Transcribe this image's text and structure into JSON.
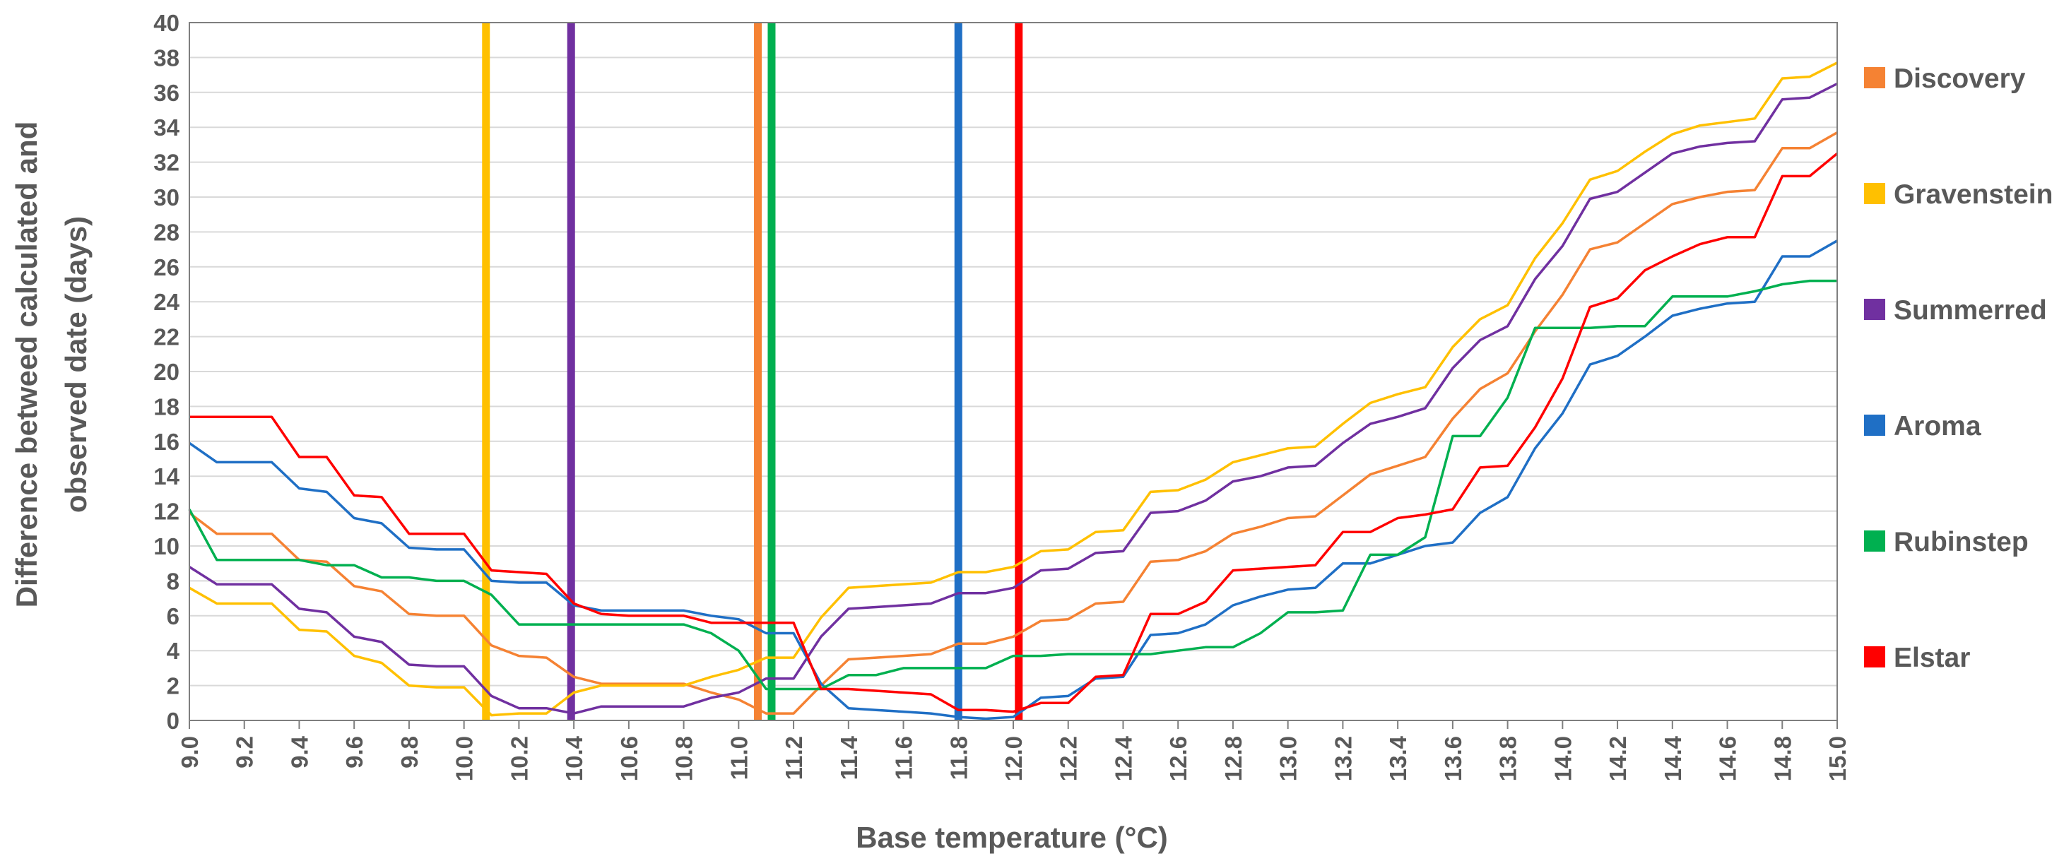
{
  "chart_data": {
    "type": "line",
    "title": "",
    "xlabel": "Base temperature (°C)",
    "ylabel_lines": [
      "Difference betweed calculated and",
      "observed date (days)"
    ],
    "xlim": [
      9.0,
      15.0
    ],
    "ylim": [
      0,
      40
    ],
    "x_ticks": [
      "9.0",
      "9.2",
      "9.4",
      "9.6",
      "9.8",
      "10.0",
      "10.2",
      "10.4",
      "10.6",
      "10.8",
      "11.0",
      "11.2",
      "11.4",
      "11.6",
      "11.8",
      "12.0",
      "12.2",
      "12.4",
      "12.6",
      "12.8",
      "13.0",
      "13.2",
      "13.4",
      "13.6",
      "13.8",
      "14.0",
      "14.2",
      "14.4",
      "14.6",
      "14.8",
      "15.0"
    ],
    "y_ticks": [
      "0",
      "2",
      "4",
      "6",
      "8",
      "10",
      "12",
      "14",
      "16",
      "18",
      "20",
      "22",
      "24",
      "26",
      "28",
      "30",
      "32",
      "34",
      "36",
      "38",
      "40"
    ],
    "grid": "horizontal",
    "legend_position": "right",
    "x": [
      9.0,
      9.1,
      9.2,
      9.3,
      9.4,
      9.5,
      9.6,
      9.7,
      9.8,
      9.9,
      10.0,
      10.1,
      10.2,
      10.3,
      10.4,
      10.5,
      10.6,
      10.7,
      10.8,
      10.9,
      11.0,
      11.1,
      11.2,
      11.3,
      11.4,
      11.5,
      11.6,
      11.7,
      11.8,
      11.9,
      12.0,
      12.1,
      12.2,
      12.3,
      12.4,
      12.5,
      12.6,
      12.7,
      12.8,
      12.9,
      13.0,
      13.1,
      13.2,
      13.3,
      13.4,
      13.5,
      13.6,
      13.7,
      13.8,
      13.9,
      14.0,
      14.1,
      14.2,
      14.3,
      14.4,
      14.5,
      14.6,
      14.7,
      14.8,
      14.9,
      15.0
    ],
    "series": [
      {
        "name": "Discovery",
        "color": "#F58233",
        "optimum": 11.07,
        "values": [
          11.9,
          10.7,
          10.7,
          10.7,
          9.2,
          9.1,
          7.7,
          7.4,
          6.1,
          6.0,
          6.0,
          4.3,
          3.7,
          3.6,
          2.5,
          2.1,
          2.1,
          2.1,
          2.1,
          1.6,
          1.2,
          0.4,
          0.4,
          2.0,
          3.5,
          3.6,
          3.7,
          3.8,
          4.4,
          4.4,
          4.8,
          5.7,
          5.8,
          6.7,
          6.8,
          9.1,
          9.2,
          9.7,
          10.7,
          11.1,
          11.6,
          11.7,
          12.9,
          14.1,
          14.6,
          15.1,
          17.3,
          19.0,
          19.9,
          22.3,
          24.4,
          27.0,
          27.4,
          28.5,
          29.6,
          30.0,
          30.3,
          30.4,
          32.8,
          32.8,
          33.7
        ]
      },
      {
        "name": "Gravenstein",
        "color": "#FFC000",
        "optimum": 10.08,
        "values": [
          7.6,
          6.7,
          6.7,
          6.7,
          5.2,
          5.1,
          3.7,
          3.3,
          2.0,
          1.9,
          1.9,
          0.3,
          0.4,
          0.4,
          1.6,
          2.0,
          2.0,
          2.0,
          2.0,
          2.5,
          2.9,
          3.6,
          3.6,
          5.9,
          7.6,
          7.7,
          7.8,
          7.9,
          8.5,
          8.5,
          8.8,
          9.7,
          9.8,
          10.8,
          10.9,
          13.1,
          13.2,
          13.8,
          14.8,
          15.2,
          15.6,
          15.7,
          17.0,
          18.2,
          18.7,
          19.1,
          21.4,
          23.0,
          23.8,
          26.5,
          28.5,
          31.0,
          31.5,
          32.6,
          33.6,
          34.1,
          34.3,
          34.5,
          36.8,
          36.9,
          37.7
        ]
      },
      {
        "name": "Summerred",
        "color": "#7030A0",
        "optimum": 10.39,
        "values": [
          8.8,
          7.8,
          7.8,
          7.8,
          6.4,
          6.2,
          4.8,
          4.5,
          3.2,
          3.1,
          3.1,
          1.4,
          0.7,
          0.7,
          0.4,
          0.8,
          0.8,
          0.8,
          0.8,
          1.3,
          1.6,
          2.4,
          2.4,
          4.8,
          6.4,
          6.5,
          6.6,
          6.7,
          7.3,
          7.3,
          7.6,
          8.6,
          8.7,
          9.6,
          9.7,
          11.9,
          12.0,
          12.6,
          13.7,
          14.0,
          14.5,
          14.6,
          15.9,
          17.0,
          17.4,
          17.9,
          20.2,
          21.8,
          22.6,
          25.3,
          27.2,
          29.9,
          30.3,
          31.4,
          32.5,
          32.9,
          33.1,
          33.2,
          35.6,
          35.7,
          36.5
        ]
      },
      {
        "name": "Aroma",
        "color": "#1F6FC5",
        "optimum": 11.8,
        "values": [
          15.9,
          14.8,
          14.8,
          14.8,
          13.3,
          13.1,
          11.6,
          11.3,
          9.9,
          9.8,
          9.8,
          8.0,
          7.9,
          7.9,
          6.6,
          6.3,
          6.3,
          6.3,
          6.3,
          6.0,
          5.8,
          5.0,
          5.0,
          2.1,
          0.7,
          0.6,
          0.5,
          0.4,
          0.2,
          0.1,
          0.2,
          1.3,
          1.4,
          2.4,
          2.5,
          4.9,
          5.0,
          5.5,
          6.6,
          7.1,
          7.5,
          7.6,
          9.0,
          9.0,
          9.5,
          10.0,
          10.2,
          11.9,
          12.8,
          15.6,
          17.6,
          20.4,
          20.9,
          22.0,
          23.2,
          23.6,
          23.9,
          24.0,
          26.6,
          26.6,
          27.5
        ]
      },
      {
        "name": "Rubinstep",
        "color": "#00B050",
        "optimum": 11.12,
        "values": [
          12.1,
          9.2,
          9.2,
          9.2,
          9.2,
          8.9,
          8.9,
          8.2,
          8.2,
          8.0,
          8.0,
          7.2,
          5.5,
          5.5,
          5.5,
          5.5,
          5.5,
          5.5,
          5.5,
          5.0,
          4.0,
          1.8,
          1.8,
          1.8,
          2.6,
          2.6,
          3.0,
          3.0,
          3.0,
          3.0,
          3.7,
          3.7,
          3.8,
          3.8,
          3.8,
          3.8,
          4.0,
          4.2,
          4.2,
          5.0,
          6.2,
          6.2,
          6.3,
          9.5,
          9.5,
          10.5,
          16.3,
          16.3,
          18.5,
          22.5,
          22.5,
          22.5,
          22.6,
          22.6,
          24.3,
          24.3,
          24.3,
          24.6,
          25.0,
          25.2,
          25.2
        ]
      },
      {
        "name": "Elstar",
        "color": "#FF0000",
        "optimum": 12.02,
        "values": [
          17.4,
          17.4,
          17.4,
          17.4,
          15.1,
          15.1,
          12.9,
          12.8,
          10.7,
          10.7,
          10.7,
          8.6,
          8.5,
          8.4,
          6.7,
          6.1,
          6.0,
          6.0,
          6.0,
          5.6,
          5.6,
          5.6,
          5.6,
          1.8,
          1.8,
          1.7,
          1.6,
          1.5,
          0.6,
          0.6,
          0.5,
          1.0,
          1.0,
          2.5,
          2.6,
          6.1,
          6.1,
          6.8,
          8.6,
          8.7,
          8.8,
          8.9,
          10.8,
          10.8,
          11.6,
          11.8,
          12.1,
          14.5,
          14.6,
          16.8,
          19.6,
          23.7,
          24.2,
          25.8,
          26.6,
          27.3,
          27.7,
          27.7,
          31.2,
          31.2,
          32.5
        ]
      }
    ]
  }
}
